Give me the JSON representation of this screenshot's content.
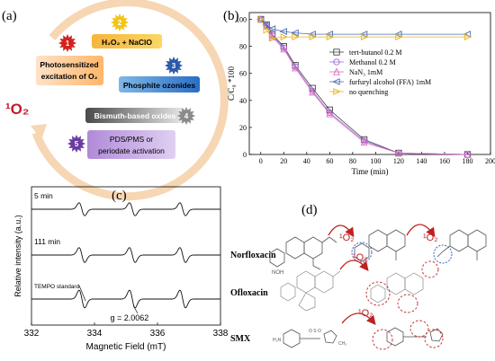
{
  "panel_a": {
    "label": "(a)",
    "center": "¹O₂",
    "items": [
      {
        "num": "1",
        "text1": "Photosensitized",
        "text2": "excitation of O₂",
        "color": "#d0231e"
      },
      {
        "num": "2",
        "text1": "H₂O₂ + NaClO",
        "text2": "",
        "color": "#f2c417"
      },
      {
        "num": "3",
        "text1": "Phosphite ozonides",
        "text2": "",
        "color": "#2a5aa8"
      },
      {
        "num": "4",
        "text1": "Bismuth-based oxides",
        "text2": "",
        "color": "#8a8a8a"
      },
      {
        "num": "5",
        "text1": "PDS/PMS or",
        "text2": "periodate activation",
        "color": "#6a3ca0"
      }
    ]
  },
  "panel_b": {
    "label": "(b)",
    "chart_data": {
      "type": "line",
      "xlabel": "Time (min)",
      "ylabel": "C/C₀ *100",
      "xlim": [
        -10,
        200
      ],
      "ylim": [
        0,
        105
      ],
      "x_ticks": [
        0,
        20,
        40,
        60,
        80,
        100,
        120,
        140,
        160,
        180,
        200
      ],
      "y_ticks": [
        0,
        20,
        40,
        60,
        80,
        100
      ],
      "legend_position": "right",
      "series": [
        {
          "name": "tert-butanol 0.2 M",
          "marker": "square",
          "color": "#444444",
          "x": [
            0,
            5,
            10,
            20,
            30,
            45,
            60,
            90,
            120,
            180
          ],
          "y": [
            100,
            96,
            89,
            80,
            66,
            49,
            33,
            11,
            1,
            0
          ]
        },
        {
          "name": "Methanol 0.2 M",
          "marker": "circle",
          "color": "#9b6bd6",
          "x": [
            0,
            5,
            10,
            20,
            30,
            45,
            60,
            90,
            120,
            180
          ],
          "y": [
            100,
            95,
            88,
            79,
            65,
            47,
            31,
            10,
            1,
            0
          ]
        },
        {
          "name": "NaN₃ 1mM",
          "marker": "triangle-up",
          "color": "#e066c8",
          "x": [
            0,
            5,
            10,
            20,
            30,
            45,
            60,
            90,
            120,
            180
          ],
          "y": [
            100,
            95,
            87,
            78,
            64,
            46,
            30,
            9,
            1,
            0
          ]
        },
        {
          "name": "furfuryl alcohol (FFA) 1mM",
          "marker": "triangle-left",
          "color": "#4a6fb5",
          "x": [
            0,
            5,
            10,
            20,
            30,
            45,
            60,
            90,
            120,
            180
          ],
          "y": [
            100,
            96,
            93,
            91,
            90,
            89,
            89,
            89,
            89,
            89
          ]
        },
        {
          "name": "no quenching",
          "marker": "triangle-right",
          "color": "#e8b21a",
          "x": [
            0,
            5,
            10,
            20,
            30,
            45,
            60,
            90,
            120,
            180
          ],
          "y": [
            100,
            92,
            86,
            87,
            87,
            87,
            87,
            87,
            87,
            87
          ]
        }
      ]
    }
  },
  "panel_c": {
    "label": "(c)",
    "chart_data": {
      "type": "line",
      "xlabel": "Magnetic Field (mT)",
      "ylabel": "Relative intensity (a.u.)",
      "xlim": [
        332,
        338
      ],
      "x_ticks": [
        332,
        334,
        336,
        338
      ],
      "series_labels": [
        "5 min",
        "111 min",
        "TEMPO standard"
      ],
      "annotation": "g = 2.0062",
      "line_centers_mT": [
        333.6,
        335.2,
        336.8
      ]
    }
  },
  "panel_d": {
    "label": "(d)",
    "rows": [
      {
        "name": "Norfloxacin",
        "oxidant": "¹O₂",
        "oxidant2": "¹O₂"
      },
      {
        "name": "Ofloxacin",
        "oxidant": "¹O₂"
      },
      {
        "name": "SMX",
        "oxidant": "¹O₂"
      }
    ]
  }
}
